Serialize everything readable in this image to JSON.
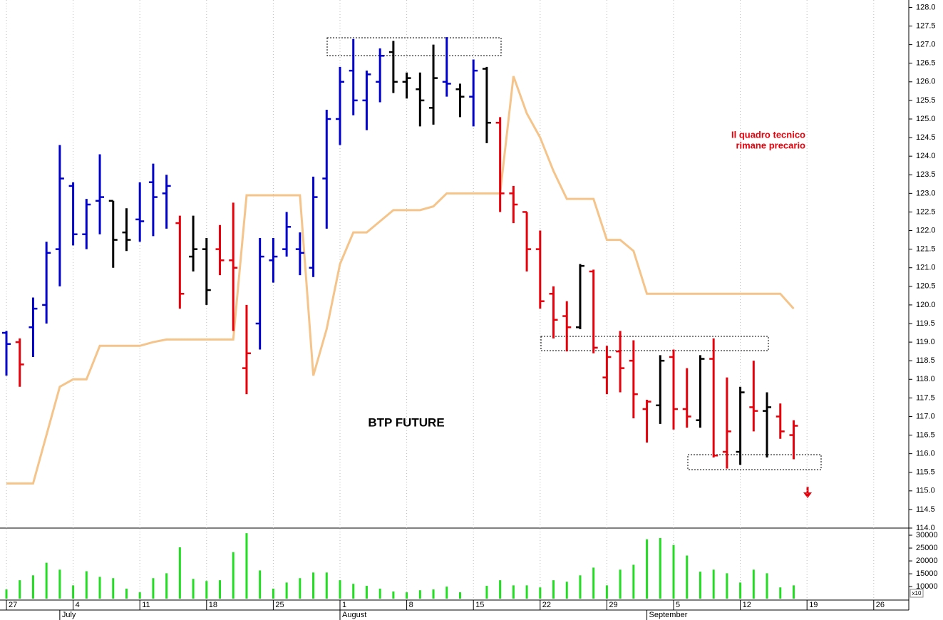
{
  "chart_data": [
    {
      "type": "ohlc",
      "title": "BTP FUTURE",
      "annotation": [
        "Il quadro tecnico",
        "rimane precario"
      ],
      "annotation_color": "#e8000b",
      "categories": [
        "27",
        null,
        null,
        null,
        null,
        "4",
        null,
        null,
        null,
        null,
        "11",
        null,
        null,
        null,
        null,
        "18",
        null,
        null,
        null,
        null,
        "25",
        null,
        null,
        null,
        null,
        "1",
        null,
        null,
        null,
        null,
        "8",
        null,
        null,
        null,
        null,
        "15",
        null,
        null,
        null,
        null,
        "22",
        null,
        null,
        null,
        null,
        "29",
        null,
        null,
        null,
        null,
        "5",
        null,
        null,
        null,
        null,
        "12",
        null,
        null,
        null,
        null,
        "19",
        null,
        null,
        null,
        null,
        "26"
      ],
      "month_categories": [
        null,
        null,
        null,
        null,
        "July",
        null,
        null,
        null,
        null,
        null,
        null,
        null,
        null,
        null,
        null,
        null,
        null,
        null,
        null,
        null,
        null,
        null,
        null,
        null,
        null,
        "August",
        null,
        null,
        null,
        null,
        null,
        null,
        null,
        null,
        null,
        null,
        null,
        null,
        null,
        null,
        null,
        null,
        null,
        null,
        null,
        null,
        null,
        null,
        "September",
        null,
        null,
        null,
        null,
        null,
        null,
        null,
        null,
        null,
        null,
        null,
        null,
        null,
        null,
        null,
        null,
        null
      ],
      "open": [
        119.25,
        119.0,
        119.4,
        120.0,
        121.5,
        123.2,
        121.9,
        122.8,
        122.8,
        121.95,
        122.3,
        123.3,
        123.0,
        122.2,
        121.3,
        121.5,
        121.5,
        121.2,
        118.3,
        119.5,
        121.2,
        121.5,
        121.5,
        121.0,
        123.4,
        125.0,
        126.3,
        125.5,
        126.0,
        126.8,
        126.0,
        125.8,
        125.3,
        126.0,
        125.8,
        125.6,
        126.35,
        124.9,
        123.0,
        122.5,
        121.5,
        120.3,
        119.7,
        119.4,
        120.9,
        118.05,
        118.75,
        118.5,
        117.2,
        117.3,
        118.6,
        117.2,
        116.9,
        118.55,
        116.05,
        116.05,
        117.25,
        117.15,
        117.0,
        116.5,
        null,
        null,
        null,
        null,
        null,
        null
      ],
      "high": [
        119.3,
        119.1,
        120.2,
        121.7,
        124.3,
        123.3,
        122.85,
        124.05,
        122.8,
        122.6,
        123.3,
        123.8,
        123.5,
        122.4,
        122.4,
        121.8,
        122.15,
        122.75,
        120.0,
        121.8,
        121.8,
        122.5,
        121.95,
        123.45,
        125.25,
        126.4,
        127.15,
        126.3,
        126.9,
        127.1,
        126.25,
        126.25,
        127.0,
        127.2,
        125.95,
        126.6,
        126.4,
        125.05,
        123.2,
        122.5,
        122.0,
        120.5,
        120.1,
        121.1,
        120.95,
        118.9,
        119.3,
        119.05,
        117.45,
        118.65,
        118.8,
        118.3,
        118.65,
        119.1,
        118.05,
        117.8,
        118.5,
        117.65,
        117.35,
        116.9,
        null,
        null,
        null,
        null,
        null,
        null
      ],
      "low": [
        118.1,
        117.8,
        118.6,
        119.5,
        120.5,
        121.6,
        121.5,
        121.9,
        121.0,
        121.45,
        121.7,
        121.85,
        122.05,
        119.9,
        120.9,
        120.0,
        120.8,
        119.3,
        117.6,
        118.8,
        120.6,
        121.3,
        120.8,
        120.75,
        122.05,
        124.3,
        125.1,
        124.7,
        125.45,
        125.7,
        125.55,
        124.8,
        124.85,
        125.6,
        125.05,
        124.8,
        124.35,
        122.5,
        122.2,
        120.9,
        119.9,
        119.1,
        118.75,
        119.35,
        118.7,
        117.6,
        117.65,
        116.95,
        116.3,
        116.8,
        116.65,
        116.7,
        116.7,
        115.9,
        115.6,
        115.7,
        116.6,
        115.9,
        116.4,
        115.85,
        null,
        null,
        null,
        null,
        null,
        null
      ],
      "close": [
        118.95,
        118.4,
        119.9,
        121.4,
        123.4,
        121.9,
        122.7,
        122.9,
        121.75,
        121.75,
        122.25,
        122.9,
        123.2,
        120.3,
        121.5,
        120.4,
        121.2,
        121.0,
        118.7,
        121.3,
        121.3,
        122.1,
        121.4,
        122.9,
        125.0,
        126.0,
        125.5,
        126.2,
        126.7,
        126.0,
        126.1,
        125.5,
        126.1,
        125.95,
        125.6,
        126.3,
        124.9,
        123.0,
        122.7,
        121.5,
        120.1,
        119.6,
        119.4,
        121.05,
        118.85,
        118.6,
        118.3,
        117.6,
        117.4,
        118.5,
        117.2,
        117.0,
        118.55,
        115.95,
        116.6,
        117.65,
        117.15,
        117.25,
        116.6,
        116.75,
        null,
        null,
        null,
        null,
        null,
        null
      ],
      "bar_colors": [
        "#0000cc",
        "#e8000b",
        "#0000cc",
        "#0000cc",
        "#0000cc",
        "#0000cc",
        "#0000cc",
        "#0000cc",
        "#000000",
        "#000000",
        "#0000cc",
        "#0000cc",
        "#0000cc",
        "#e8000b",
        "#000000",
        "#000000",
        "#e8000b",
        "#e8000b",
        "#e8000b",
        "#0000cc",
        "#0000cc",
        "#0000cc",
        "#0000cc",
        "#0000cc",
        "#0000cc",
        "#0000cc",
        "#0000cc",
        "#0000cc",
        "#0000cc",
        "#000000",
        "#000000",
        "#000000",
        "#000000",
        "#0000cc",
        "#000000",
        "#0000cc",
        "#000000",
        "#e8000b",
        "#e8000b",
        "#e8000b",
        "#e8000b",
        "#e8000b",
        "#e8000b",
        "#000000",
        "#e8000b",
        "#e8000b",
        "#e8000b",
        "#e8000b",
        "#e8000b",
        "#000000",
        "#e8000b",
        "#e8000b",
        "#000000",
        "#e8000b",
        "#e8000b",
        "#000000",
        "#e8000b",
        "#000000",
        "#e8000b",
        "#e8000b",
        null,
        null,
        null,
        null,
        null,
        null
      ],
      "line": {
        "color": "#f5c48a",
        "values": [
          115.2,
          115.2,
          115.2,
          116.5,
          117.8,
          118.0,
          118.0,
          118.9,
          118.9,
          118.9,
          118.9,
          119.0,
          119.07,
          119.07,
          119.07,
          119.07,
          119.07,
          119.07,
          122.95,
          122.95,
          122.95,
          122.95,
          122.95,
          118.1,
          119.35,
          121.1,
          121.95,
          121.95,
          122.25,
          122.55,
          122.55,
          122.55,
          122.65,
          123.0,
          123.0,
          123.0,
          123.0,
          123.0,
          126.15,
          125.15,
          124.5,
          123.6,
          122.85,
          122.85,
          122.85,
          121.75,
          121.75,
          121.45,
          120.3,
          120.3,
          120.3,
          120.3,
          120.3,
          120.3,
          120.3,
          120.3,
          120.3,
          120.3,
          120.3,
          119.9,
          null,
          null,
          null,
          null,
          null,
          null
        ]
      },
      "ylim": [
        114.0,
        128.2
      ],
      "yticks": [
        {
          "value": 114,
          "label": "114.0"
        },
        114.5,
        {
          "value": 115,
          "label": "115.0"
        },
        115.5,
        {
          "value": 116,
          "label": "116.0"
        },
        116.5,
        {
          "value": 117,
          "label": "117.0"
        },
        117.5,
        {
          "value": 118,
          "label": "118.0"
        },
        118.5,
        {
          "value": 119,
          "label": "119.0"
        },
        119.5,
        {
          "value": 120,
          "label": "120.0"
        },
        120.5,
        {
          "value": 121,
          "label": "121.0"
        },
        121.5,
        {
          "value": 122,
          "label": "122.0"
        },
        122.5,
        {
          "value": 123,
          "label": "123.0"
        },
        123.5,
        {
          "value": 124,
          "label": "124.0"
        },
        124.5,
        {
          "value": 125,
          "label": "125.0"
        },
        125.5,
        {
          "value": 126,
          "label": "126.0"
        },
        126.5,
        {
          "value": 127,
          "label": "127.0"
        },
        127.5,
        {
          "value": 128,
          "label": "128.0"
        }
      ],
      "grid": true
    },
    {
      "type": "bar",
      "color": "#22dd22",
      "values": [
        8900,
        12500,
        14400,
        19300,
        16600,
        10500,
        16000,
        13800,
        13300,
        9200,
        7800,
        13300,
        15200,
        25300,
        13000,
        12200,
        12500,
        23400,
        30800,
        16300,
        9200,
        11600,
        13300,
        15500,
        15500,
        12500,
        11100,
        10300,
        9200,
        8100,
        7800,
        8600,
        8900,
        10000,
        7800,
        null,
        10300,
        12500,
        10500,
        10500,
        9700,
        12500,
        11900,
        14400,
        17400,
        10500,
        16600,
        18500,
        28400,
        28900,
        26200,
        22100,
        15800,
        16600,
        15200,
        11600,
        16600,
        15200,
        9700,
        10500,
        null,
        null,
        null,
        null,
        null,
        null
      ],
      "ylim": [
        4500,
        32500
      ],
      "yticks": [
        10000,
        15000,
        20000,
        25000,
        30000
      ],
      "scale_label": "x10",
      "grid": true
    }
  ]
}
